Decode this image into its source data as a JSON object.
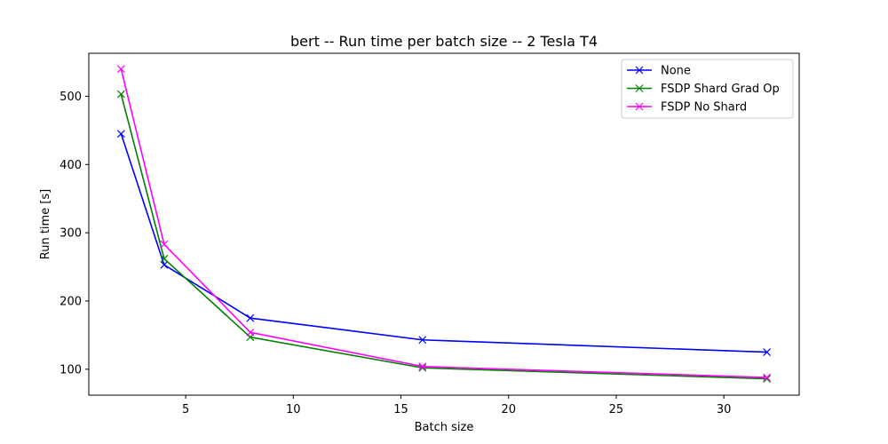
{
  "chart_data": {
    "type": "line",
    "title": "bert -- Run time per batch size -- 2 Tesla T4",
    "xlabel": "Batch size",
    "ylabel": "Run time [s]",
    "xlim": [
      0.5,
      33.5
    ],
    "ylim": [
      62,
      563
    ],
    "xticks": [
      5,
      10,
      15,
      20,
      25,
      30
    ],
    "xtick_labels": [
      "5",
      "10",
      "15",
      "20",
      "25",
      "30"
    ],
    "yticks": [
      100,
      200,
      300,
      400,
      500
    ],
    "ytick_labels": [
      "100",
      "200",
      "300",
      "400",
      "500"
    ],
    "grid": false,
    "legend_position": "top-right",
    "marker": "x",
    "x": [
      2,
      4,
      8,
      16,
      32
    ],
    "series": [
      {
        "name": "None",
        "color": "#0000ff",
        "values": [
          445,
          253,
          175,
          143,
          125
        ]
      },
      {
        "name": "FSDP Shard Grad Op",
        "color": "#008000",
        "values": [
          503,
          262,
          147,
          102,
          86
        ]
      },
      {
        "name": "FSDP No Shard",
        "color": "#ff00ff",
        "values": [
          540,
          283,
          154,
          104,
          88
        ]
      }
    ]
  }
}
